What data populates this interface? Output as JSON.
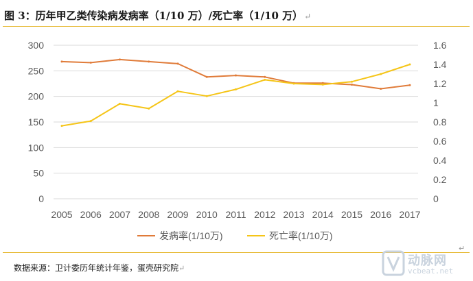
{
  "header": {
    "title": "图 3：历年甲乙类传染病发病率（1/10 万）/死亡率（1/10 万）",
    "paragraph_mark": "↵"
  },
  "footer": {
    "source": "数据来源：卫计委历年统计年鉴，蛋壳研究院",
    "paragraph_mark": "↵",
    "trailing_mark": "↵"
  },
  "watermark": {
    "text": "动脉网",
    "url": "vcbeat.net"
  },
  "colors": {
    "incidence": "#e07b39",
    "mortality": "#f5c518",
    "rule": "#e6b830",
    "grid": "#d9d9d9",
    "tick_text": "#595959"
  },
  "chart_data": {
    "type": "line",
    "title": "",
    "x": [
      "2005",
      "2006",
      "2007",
      "2008",
      "2009",
      "2010",
      "2011",
      "2012",
      "2013",
      "2014",
      "2015",
      "2016",
      "2017"
    ],
    "series": [
      {
        "name": "发病率(1/10万)",
        "axis": "left",
        "values": [
          268,
          266,
          272,
          268,
          264,
          238,
          241,
          238,
          226,
          226,
          223,
          215,
          222
        ]
      },
      {
        "name": "死亡率(1/10万)",
        "axis": "right",
        "values": [
          0.76,
          0.81,
          0.99,
          0.94,
          1.12,
          1.07,
          1.14,
          1.24,
          1.2,
          1.19,
          1.22,
          1.3,
          1.4
        ]
      }
    ],
    "y_left": {
      "ylim": [
        0,
        300
      ],
      "ticks": [
        "0",
        "50",
        "100",
        "150",
        "200",
        "250",
        "300"
      ]
    },
    "y_right": {
      "ylim": [
        0,
        1.6
      ],
      "ticks": [
        "0",
        "0.2",
        "0.4",
        "0.6",
        "0.8",
        "1",
        "1.2",
        "1.4",
        "1.6"
      ]
    },
    "grid": "horizontal",
    "legend": "bottom-center"
  }
}
